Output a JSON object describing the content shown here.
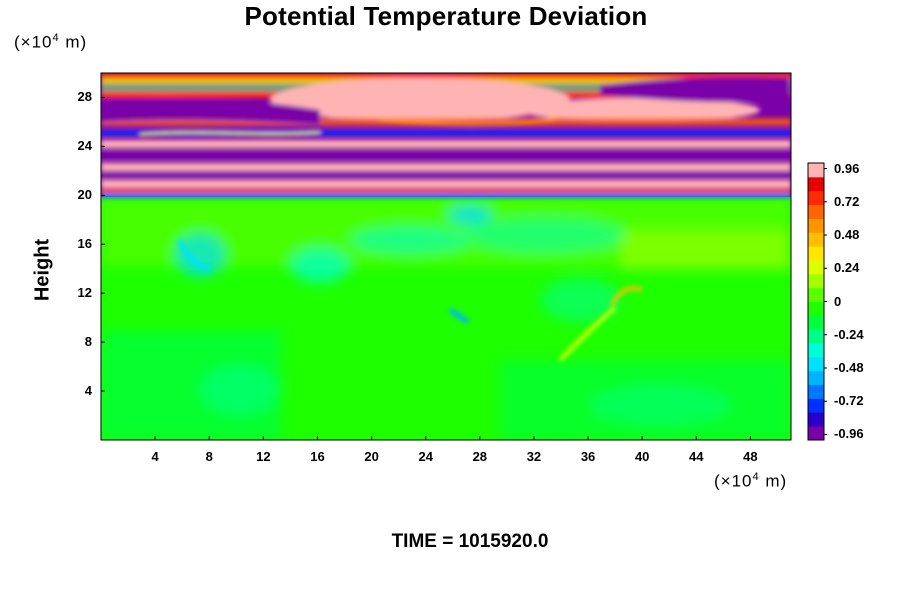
{
  "chart_data": {
    "type": "heatmap",
    "title": "Potential Temperature Deviation",
    "ylabel": "Height",
    "y_unit": "(×10",
    "x_unit": "(×10",
    "unit_exponent": "4",
    "unit_suffix": " m)",
    "footer": "TIME = 1015920.0",
    "xlim": [
      0,
      51
    ],
    "ylim": [
      0,
      30
    ],
    "x_ticks": [
      "4",
      "8",
      "12",
      "16",
      "20",
      "24",
      "28",
      "32",
      "36",
      "40",
      "44",
      "48"
    ],
    "y_ticks": [
      "4",
      "8",
      "12",
      "16",
      "20",
      "24",
      "28"
    ],
    "colorbar": {
      "min": -1.0,
      "max": 1.0,
      "labels": [
        "0.96",
        "0.72",
        "0.48",
        "0.24",
        "0",
        "-0.24",
        "-0.48",
        "-0.72",
        "-0.96"
      ],
      "colors": [
        "#7a00a8",
        "#2a00c8",
        "#0030ff",
        "#0078ff",
        "#00b4ff",
        "#00e0ff",
        "#00ffd8",
        "#00ff88",
        "#00ff3c",
        "#1eff00",
        "#5aff00",
        "#a0ff00",
        "#dcff00",
        "#ffe600",
        "#ffbe00",
        "#ff9600",
        "#ff6400",
        "#ff2a00",
        "#e60000",
        "#ffb4b4"
      ]
    }
  }
}
